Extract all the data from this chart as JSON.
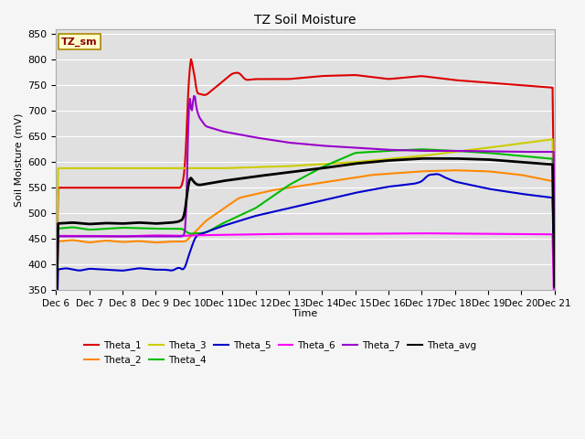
{
  "title": "TZ Soil Moisture",
  "ylabel": "Soil Moisture (mV)",
  "xlabel": "Time",
  "ylim": [
    350,
    860
  ],
  "yticks": [
    350,
    400,
    450,
    500,
    550,
    600,
    650,
    700,
    750,
    800,
    850
  ],
  "plot_bg_color": "#e0e0e0",
  "fig_bg_color": "#f5f5f5",
  "legend_label": "TZ_sm",
  "series": {
    "Theta_1": {
      "color": "#dd0000"
    },
    "Theta_2": {
      "color": "#ff8800"
    },
    "Theta_3": {
      "color": "#cccc00"
    },
    "Theta_4": {
      "color": "#00bb00"
    },
    "Theta_5": {
      "color": "#0000cc"
    },
    "Theta_6": {
      "color": "#ff00ff"
    },
    "Theta_7": {
      "color": "#9900cc"
    },
    "Theta_avg": {
      "color": "#000000"
    }
  },
  "x_labels": [
    "Dec 6",
    "Dec 7",
    "Dec 8",
    "Dec 9",
    "Dec 10",
    "Dec 11",
    "Dec 12",
    "Dec 13",
    "Dec 14",
    "Dec 15",
    "Dec 16",
    "Dec 17",
    "Dec 18",
    "Dec 19",
    "Dec 20",
    "Dec 21"
  ],
  "num_points": 500
}
